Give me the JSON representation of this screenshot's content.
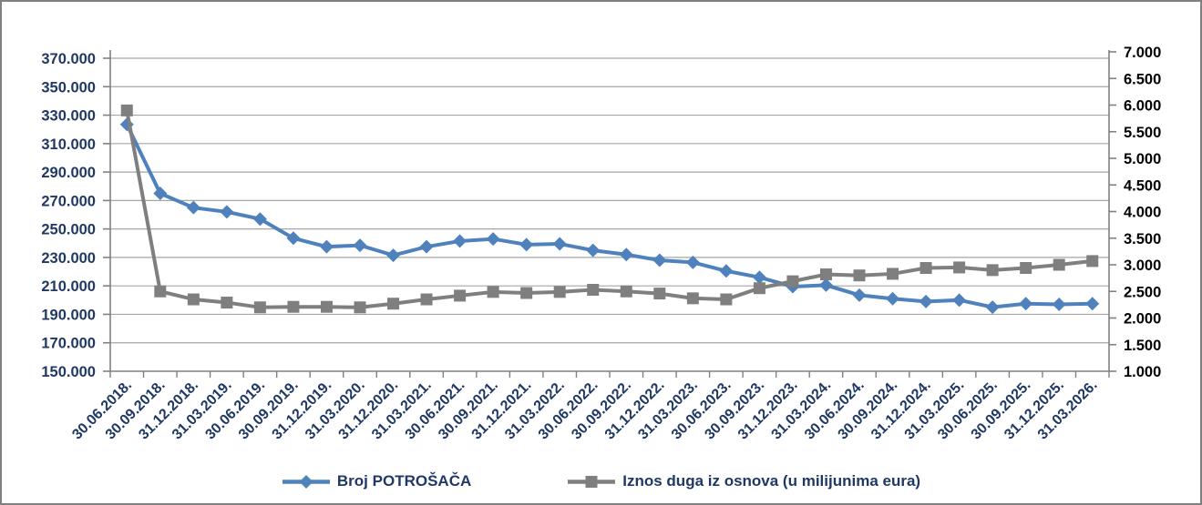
{
  "chart_data": {
    "type": "line",
    "title": "",
    "grid": true,
    "legend_position": "bottom",
    "background": "#FFFFFF",
    "border_color": "#808080",
    "gridline_color": "#A6A6A6",
    "axis_line_color": "#808080",
    "x_tick_labels": [
      "30.06.2018.",
      "30.09.2018.",
      "31.12.2018.",
      "31.03.2019.",
      "30.06.2019.",
      "30.09.2019.",
      "31.12.2019.",
      "31.03.2020.",
      "31.12.2020.",
      "31.03.2021.",
      "30.06.2021.",
      "30.09.2021.",
      "31.12.2021.",
      "31.03.2022.",
      "30.06.2022.",
      "30.09.2022.",
      "31.12.2022.",
      "31.03.2023.",
      "30.06.2023.",
      "30.09.2023.",
      "31.12.2023.",
      "31.03.2024.",
      "30.06.2024.",
      "30.09.2024.",
      "31.12.2024.",
      "31.03.2025.",
      "30.06.2025.",
      "30.09.2025.",
      "31.12.2025.",
      "31.03.2026."
    ],
    "left_axis": {
      "min": 150000,
      "max": 370000,
      "step": 20000,
      "tick_labels": [
        "370.000",
        "350.000",
        "330.000",
        "310.000",
        "290.000",
        "270.000",
        "250.000",
        "230.000",
        "210.000",
        "190.000",
        "170.000",
        "150.000"
      ],
      "text_color": "#1F3864"
    },
    "right_axis": {
      "min": 1.0,
      "max": 7.0,
      "step": 0.5,
      "tick_labels": [
        "7.000",
        "6.500",
        "6.000",
        "5.500",
        "5.000",
        "4.500",
        "4.000",
        "3.500",
        "3.000",
        "2.500",
        "2.000",
        "1.500",
        "1.000"
      ],
      "text_color": "#000000"
    },
    "x_axis": {
      "text_color": "#1F3864",
      "rotation": -45
    },
    "series": [
      {
        "name": "Broj POTROŠAČA",
        "axis": "left",
        "color": "#4F81BD",
        "marker": "diamond",
        "values": [
          323500,
          275000,
          265000,
          262000,
          257000,
          243500,
          237500,
          238500,
          231500,
          237500,
          241500,
          243000,
          239000,
          239500,
          235000,
          232000,
          228000,
          226500,
          220500,
          216000,
          209500,
          210500,
          203500,
          201000,
          199000,
          200000,
          195000,
          197500,
          197000,
          197500
        ]
      },
      {
        "name": "Iznos duga iz osnova (u milijunima eura)",
        "axis": "right",
        "color": "#7F7F7F",
        "marker": "square",
        "values": [
          5.9,
          2.5,
          2.35,
          2.29,
          2.2,
          2.21,
          2.21,
          2.2,
          2.27,
          2.35,
          2.42,
          2.49,
          2.47,
          2.49,
          2.53,
          2.5,
          2.46,
          2.37,
          2.35,
          2.56,
          2.69,
          2.82,
          2.8,
          2.83,
          2.94,
          2.95,
          2.9,
          2.94,
          3.0,
          3.07
        ]
      }
    ]
  },
  "legend": {
    "items": [
      {
        "label": "Broj POTROŠAČA"
      },
      {
        "label": "Iznos duga iz osnova (u milijunima eura)"
      }
    ]
  }
}
